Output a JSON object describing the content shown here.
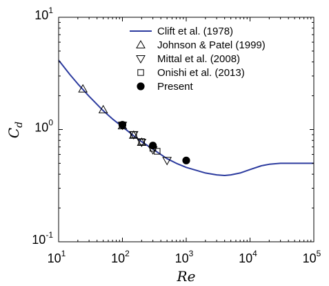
{
  "chart_data": {
    "type": "scatter",
    "x_scale": "log",
    "y_scale": "log",
    "xlim": [
      10,
      100000
    ],
    "ylim": [
      0.1,
      10
    ],
    "xlabel": "Re",
    "ylabel_main": "C",
    "ylabel_sub": "d",
    "x_ticks": [
      {
        "value": 10,
        "base": "10",
        "exp": "1"
      },
      {
        "value": 100,
        "base": "10",
        "exp": "2"
      },
      {
        "value": 1000,
        "base": "10",
        "exp": "3"
      },
      {
        "value": 10000,
        "base": "10",
        "exp": "4"
      },
      {
        "value": 100000,
        "base": "10",
        "exp": "5"
      }
    ],
    "y_ticks": [
      {
        "value": 0.1,
        "base": "10",
        "exp": "-1"
      },
      {
        "value": 1,
        "base": "10",
        "exp": "0"
      },
      {
        "value": 10,
        "base": "10",
        "exp": "1"
      }
    ],
    "grid": false,
    "legend_position": "top-right",
    "series": [
      {
        "name": "Clift et al. (1978)",
        "kind": "line",
        "color": "#2b3a9e",
        "x": [
          10,
          15,
          20,
          30,
          50,
          70,
          100,
          150,
          200,
          300,
          500,
          700,
          1000,
          1500,
          2000,
          3000,
          4000,
          5000,
          7000,
          10000,
          15000,
          20000,
          30000,
          50000,
          100000
        ],
        "y": [
          4.15,
          3.09,
          2.55,
          1.98,
          1.47,
          1.24,
          1.06,
          0.88,
          0.78,
          0.67,
          0.55,
          0.5,
          0.46,
          0.43,
          0.41,
          0.395,
          0.39,
          0.395,
          0.41,
          0.44,
          0.475,
          0.49,
          0.5,
          0.5,
          0.5
        ]
      },
      {
        "name": "Johnson & Patel (1999)",
        "kind": "marker",
        "marker": "triangle-up",
        "x": [
          24,
          50,
          100,
          150,
          200
        ],
        "y": [
          2.3,
          1.5,
          1.08,
          0.89,
          0.77
        ]
      },
      {
        "name": "Mittal et al. (2008)",
        "kind": "marker",
        "marker": "triangle-down",
        "x": [
          100,
          150,
          200,
          300,
          500
        ],
        "y": [
          1.09,
          0.9,
          0.77,
          0.66,
          0.53
        ]
      },
      {
        "name": "Onishi et al. (2013)",
        "kind": "marker",
        "marker": "square",
        "x": [
          100,
          150,
          200,
          300,
          350
        ],
        "y": [
          1.1,
          0.9,
          0.78,
          0.68,
          0.64
        ]
      },
      {
        "name": "Present",
        "kind": "marker",
        "marker": "filled-circle",
        "x": [
          100,
          300,
          1000
        ],
        "y": [
          1.1,
          0.72,
          0.53
        ]
      }
    ]
  }
}
